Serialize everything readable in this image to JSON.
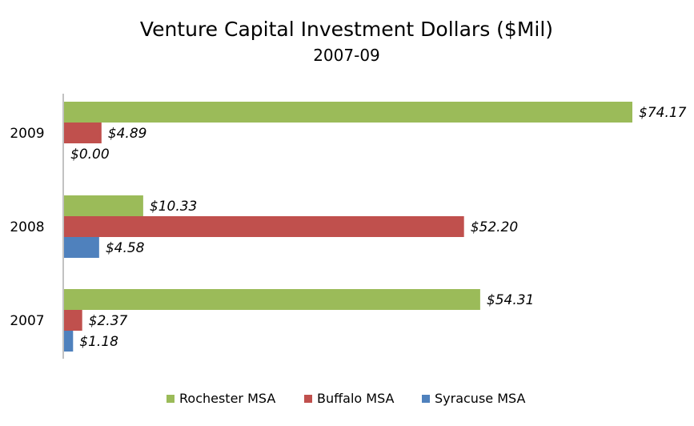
{
  "chart_data": {
    "type": "bar",
    "orientation": "horizontal",
    "title": "Venture Capital Investment Dollars ($Mil)",
    "subtitle": "2007-09",
    "categories": [
      "2009",
      "2008",
      "2007"
    ],
    "series": [
      {
        "name": "Rochester MSA",
        "color": "#9BBB59",
        "values": [
          74.17,
          10.33,
          54.31
        ],
        "labels": [
          "$74.17",
          "$10.33",
          "$54.31"
        ]
      },
      {
        "name": "Buffalo MSA",
        "color": "#C0504D",
        "values": [
          4.89,
          52.2,
          2.37
        ],
        "labels": [
          "$4.89",
          "$52.20",
          "$2.37"
        ]
      },
      {
        "name": "Syracuse MSA",
        "color": "#4F81BD",
        "values": [
          0.0,
          4.58,
          1.18
        ],
        "labels": [
          "$0.00",
          "$4.58",
          "$1.18"
        ]
      }
    ],
    "xlim": [
      0,
      74.17
    ],
    "grid": false,
    "legend": "bottom",
    "data_label_style": "italic"
  }
}
